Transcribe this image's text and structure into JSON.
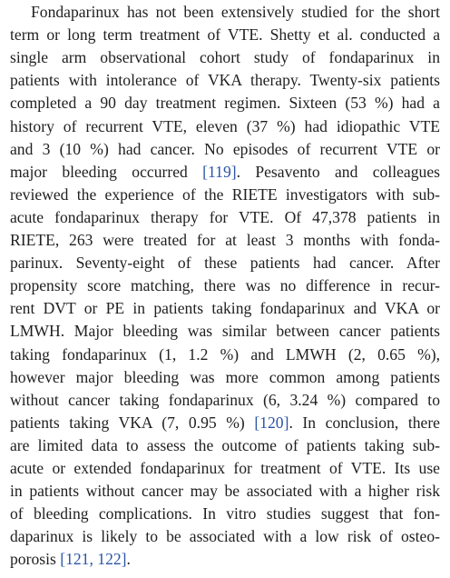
{
  "paragraph": {
    "lines": [
      {
        "segments": [
          {
            "text": "Fondaparinux has not been extensively studied for the short",
            "ref": false
          }
        ]
      },
      {
        "segments": [
          {
            "text": "term or long term treatment of VTE. Shetty et al. conducted a",
            "ref": false
          }
        ]
      },
      {
        "segments": [
          {
            "text": "single arm observational cohort study of fondaparinux in",
            "ref": false
          }
        ]
      },
      {
        "segments": [
          {
            "text": "patients with intolerance of VKA therapy. Twenty-six patients",
            "ref": false
          }
        ]
      },
      {
        "segments": [
          {
            "text": "completed a 90 day treatment regimen. Sixteen (53 %) had a",
            "ref": false
          }
        ]
      },
      {
        "segments": [
          {
            "text": "history of recurrent VTE, eleven (37 %) had idiopathic VTE",
            "ref": false
          }
        ]
      },
      {
        "segments": [
          {
            "text": "and 3 (10 %) had cancer. No episodes of recurrent VTE or",
            "ref": false
          }
        ]
      },
      {
        "segments": [
          {
            "text": "major bleeding occurred ",
            "ref": false
          },
          {
            "text": "[119]",
            "ref": true
          },
          {
            "text": ". Pesavento and colleagues",
            "ref": false
          }
        ]
      },
      {
        "segments": [
          {
            "text": "reviewed the experience of the RIETE investigators with sub-",
            "ref": false
          }
        ]
      },
      {
        "segments": [
          {
            "text": "acute fondaparinux therapy for VTE. Of 47,378 patients in",
            "ref": false
          }
        ]
      },
      {
        "segments": [
          {
            "text": "RIETE, 263 were treated for at least 3 months with fonda-",
            "ref": false
          }
        ]
      },
      {
        "segments": [
          {
            "text": "parinux. Seventy-eight of these patients had cancer. After",
            "ref": false
          }
        ]
      },
      {
        "segments": [
          {
            "text": "propensity score matching, there was no difference in recur-",
            "ref": false
          }
        ]
      },
      {
        "segments": [
          {
            "text": "rent DVT or PE in patients taking fondaparinux and VKA or",
            "ref": false
          }
        ]
      },
      {
        "segments": [
          {
            "text": "LMWH. Major bleeding was similar between cancer patients",
            "ref": false
          }
        ]
      },
      {
        "segments": [
          {
            "text": "taking fondaparinux (1, 1.2 %) and LMWH (2, 0.65 %),",
            "ref": false
          }
        ]
      },
      {
        "segments": [
          {
            "text": "however major bleeding was more common among patients",
            "ref": false
          }
        ]
      },
      {
        "segments": [
          {
            "text": "without cancer taking fondaparinux (6, 3.24 %) compared to",
            "ref": false
          }
        ]
      },
      {
        "segments": [
          {
            "text": "patients taking VKA (7, 0.95 %) ",
            "ref": false
          },
          {
            "text": "[120]",
            "ref": true
          },
          {
            "text": ". In conclusion, there",
            "ref": false
          }
        ]
      },
      {
        "segments": [
          {
            "text": "are limited data to assess the outcome of patients taking sub-",
            "ref": false
          }
        ]
      },
      {
        "segments": [
          {
            "text": "acute or extended fondaparinux for treatment of VTE. Its use",
            "ref": false
          }
        ]
      },
      {
        "segments": [
          {
            "text": "in patients without cancer may be associated with a higher risk",
            "ref": false
          }
        ]
      },
      {
        "segments": [
          {
            "text": "of bleeding complications. In vitro studies suggest that fon-",
            "ref": false
          }
        ]
      },
      {
        "segments": [
          {
            "text": "daparinux is likely to be associated with a low risk of osteo-",
            "ref": false
          }
        ]
      },
      {
        "segments": [
          {
            "text": "porosis ",
            "ref": false
          },
          {
            "text": "[121, 122]",
            "ref": true
          },
          {
            "text": ".",
            "ref": false
          }
        ]
      }
    ]
  },
  "colors": {
    "text": "#1f1f1f",
    "reference_link": "#2b55a6",
    "background": "#ffffff"
  }
}
